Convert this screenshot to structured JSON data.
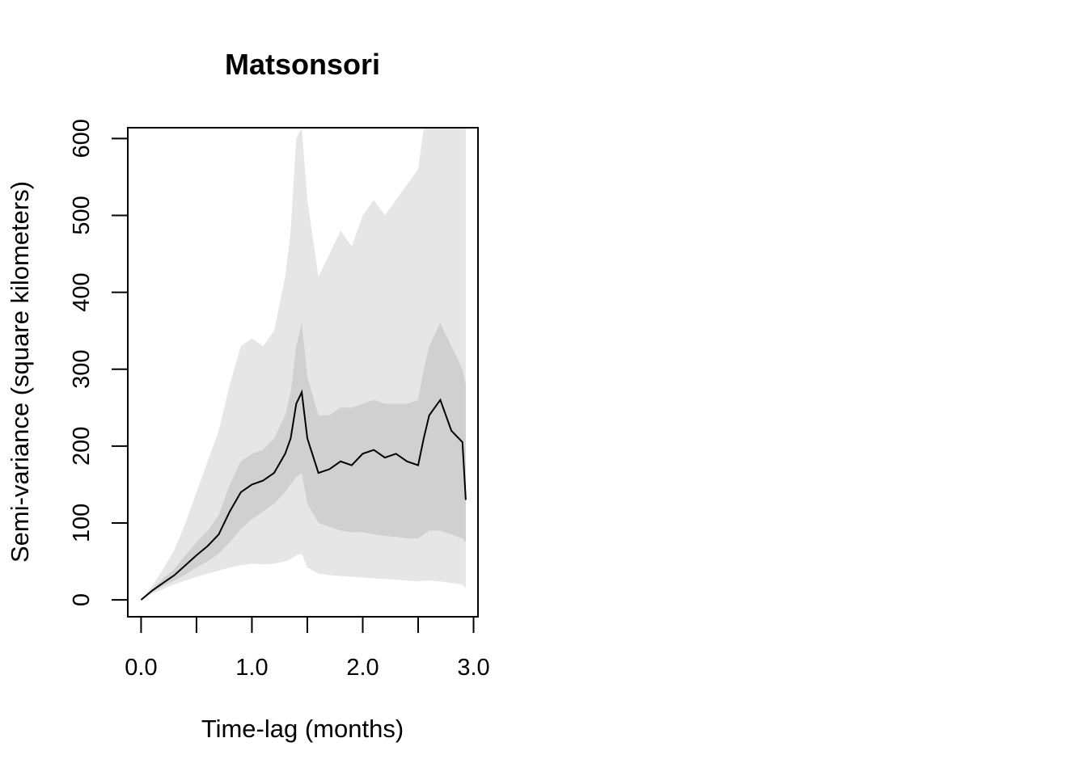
{
  "chart_data": {
    "type": "line",
    "title": "Matsonsori",
    "xlabel": "Time-lag (months)",
    "ylabel": "Semi-variance (square kilometers)",
    "xlim": [
      -0.12,
      3.04
    ],
    "ylim": [
      -22,
      614
    ],
    "x_ticks": [
      0.0,
      0.5,
      1.0,
      1.5,
      2.0,
      2.5,
      3.0
    ],
    "x_tick_labels": [
      "0.0",
      "1.0",
      "2.0",
      "3.0"
    ],
    "x_tick_label_values": [
      0.0,
      1.0,
      2.0,
      3.0
    ],
    "y_ticks": [
      0,
      100,
      200,
      300,
      400,
      500,
      600
    ],
    "y_tick_labels": [
      "0",
      "100",
      "200",
      "300",
      "400",
      "500",
      "600"
    ],
    "colors": {
      "outer_band": "#e6e6e6",
      "inner_band": "#d0d0d0",
      "line": "#000000"
    },
    "series": [
      {
        "role": "semi-variance",
        "x": [
          0.0,
          0.1,
          0.2,
          0.3,
          0.4,
          0.5,
          0.6,
          0.7,
          0.8,
          0.9,
          1.0,
          1.1,
          1.2,
          1.3,
          1.35,
          1.4,
          1.45,
          1.5,
          1.6,
          1.7,
          1.8,
          1.9,
          2.0,
          2.1,
          2.2,
          2.3,
          2.4,
          2.5,
          2.55,
          2.6,
          2.7,
          2.8,
          2.9,
          2.93
        ],
        "y": [
          0,
          12,
          22,
          32,
          45,
          58,
          70,
          85,
          115,
          140,
          150,
          155,
          165,
          190,
          210,
          255,
          270,
          210,
          165,
          170,
          180,
          175,
          190,
          195,
          185,
          190,
          180,
          175,
          210,
          240,
          260,
          220,
          205,
          130
        ],
        "lower_inner": [
          0,
          10,
          18,
          25,
          33,
          42,
          50,
          60,
          75,
          92,
          105,
          115,
          125,
          140,
          150,
          160,
          165,
          125,
          100,
          95,
          90,
          88,
          88,
          85,
          83,
          82,
          80,
          80,
          85,
          90,
          90,
          85,
          80,
          75
        ],
        "upper_inner": [
          0,
          14,
          28,
          40,
          58,
          75,
          90,
          110,
          150,
          180,
          190,
          195,
          210,
          240,
          270,
          330,
          360,
          290,
          240,
          240,
          250,
          250,
          255,
          260,
          255,
          255,
          255,
          260,
          300,
          330,
          360,
          330,
          300,
          280
        ],
        "lower_outer": [
          0,
          8,
          14,
          20,
          25,
          30,
          34,
          38,
          42,
          45,
          47,
          46,
          47,
          50,
          53,
          58,
          60,
          42,
          34,
          32,
          31,
          30,
          29,
          28,
          27,
          26,
          25,
          24,
          25,
          25,
          24,
          22,
          20,
          15
        ],
        "upper_outer": [
          0,
          18,
          40,
          65,
          100,
          140,
          180,
          220,
          280,
          330,
          340,
          330,
          350,
          420,
          480,
          600,
          614,
          520,
          420,
          450,
          480,
          460,
          500,
          520,
          500,
          520,
          540,
          560,
          614,
          614,
          614,
          614,
          614,
          614
        ]
      }
    ]
  }
}
